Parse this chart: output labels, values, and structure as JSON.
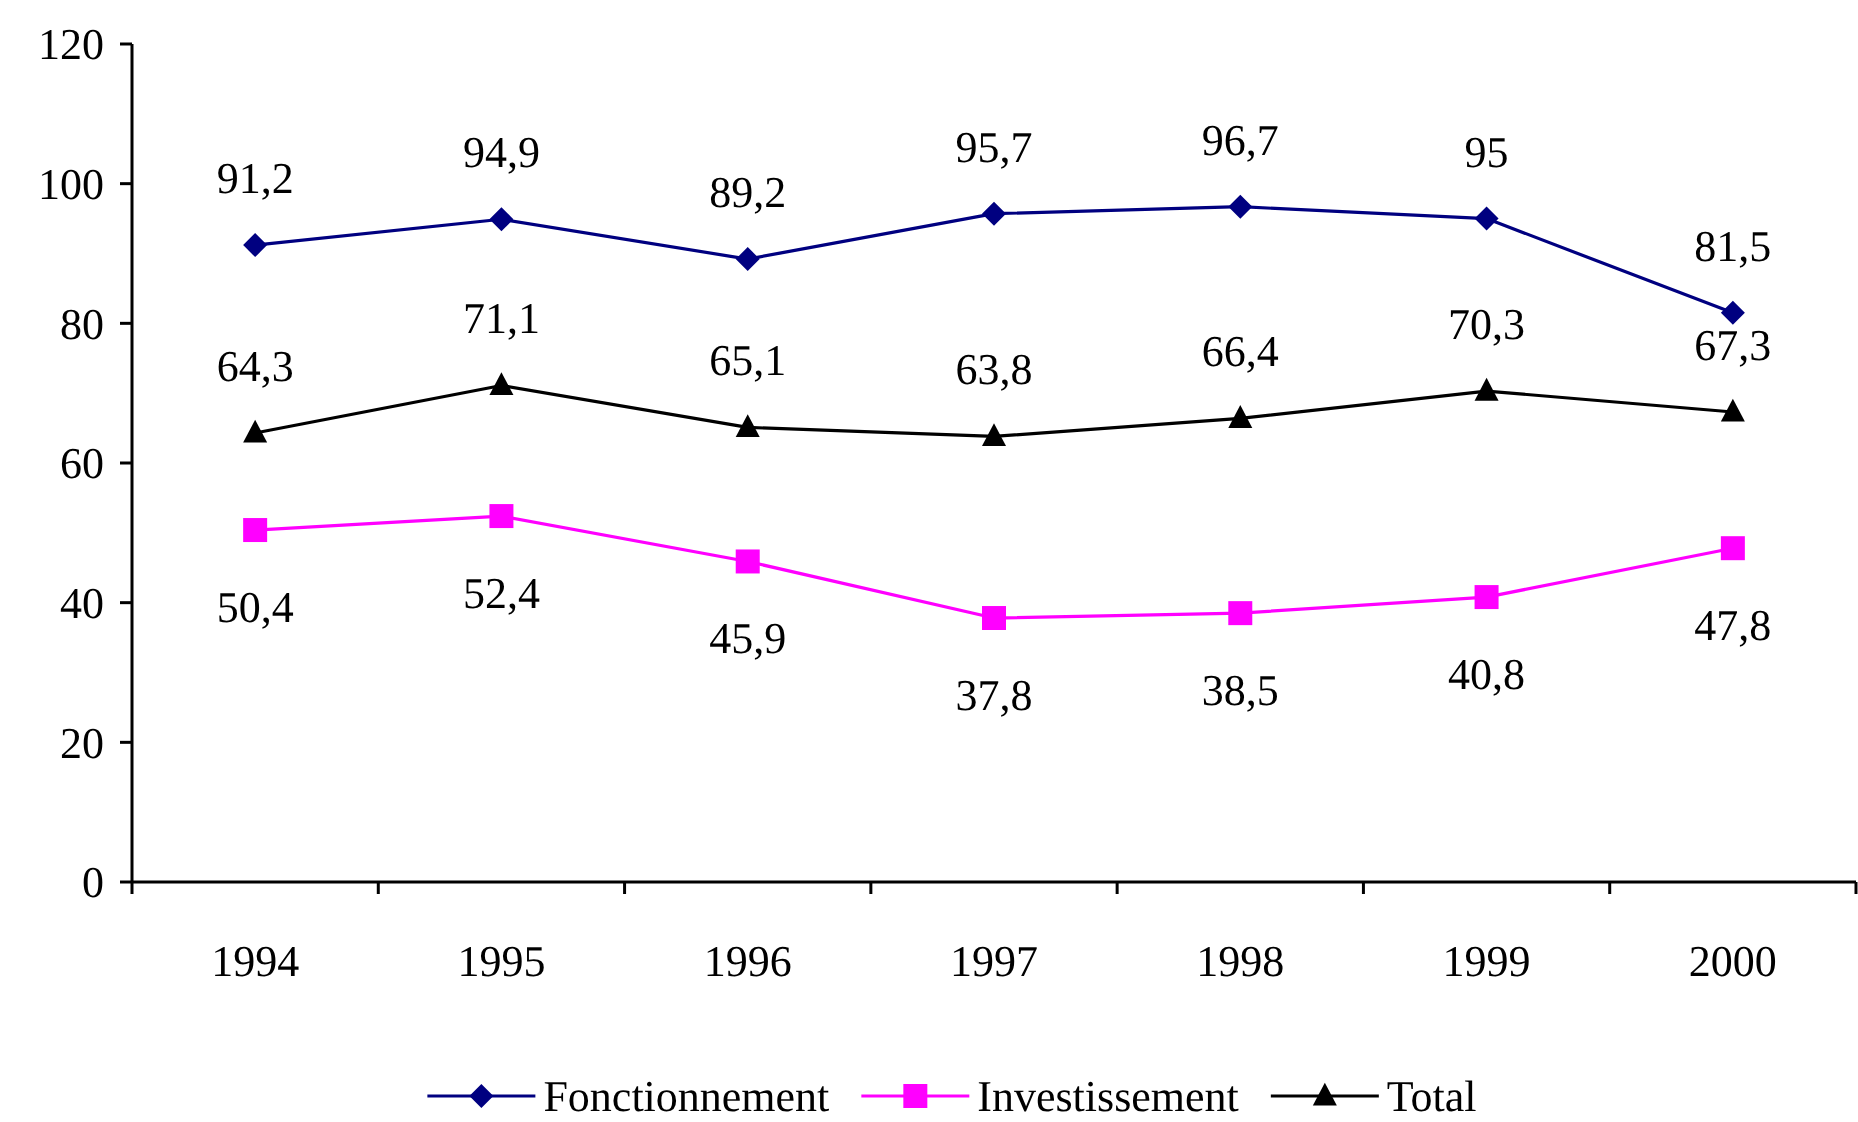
{
  "chart_data": {
    "type": "line",
    "categories": [
      "1994",
      "1995",
      "1996",
      "1997",
      "1998",
      "1999",
      "2000"
    ],
    "series": [
      {
        "name": "Fonctionnement",
        "color": "#000080",
        "marker": "diamond",
        "values": [
          91.2,
          94.9,
          89.2,
          95.7,
          96.7,
          95,
          81.5
        ],
        "value_labels": [
          "91,2",
          "94,9",
          "89,2",
          "95,7",
          "96,7",
          "95",
          "81,5"
        ]
      },
      {
        "name": "Investissement",
        "color": "#ff00ff",
        "marker": "square",
        "values": [
          50.4,
          52.4,
          45.9,
          37.8,
          38.5,
          40.8,
          47.8
        ],
        "value_labels": [
          "50,4",
          "52,4",
          "45,9",
          "37,8",
          "38,5",
          "40,8",
          "47,8"
        ]
      },
      {
        "name": "Total",
        "color": "#000000",
        "marker": "triangle",
        "values": [
          64.3,
          71.1,
          65.1,
          63.8,
          66.4,
          70.3,
          67.3
        ],
        "value_labels": [
          "64,3",
          "71,1",
          "65,1",
          "63,8",
          "66,4",
          "70,3",
          "67,3"
        ]
      }
    ],
    "ylim": [
      0,
      120
    ],
    "yticks": [
      0,
      20,
      40,
      60,
      80,
      100,
      120
    ],
    "grid": false,
    "legend": "bottom",
    "line_style": "solid"
  }
}
